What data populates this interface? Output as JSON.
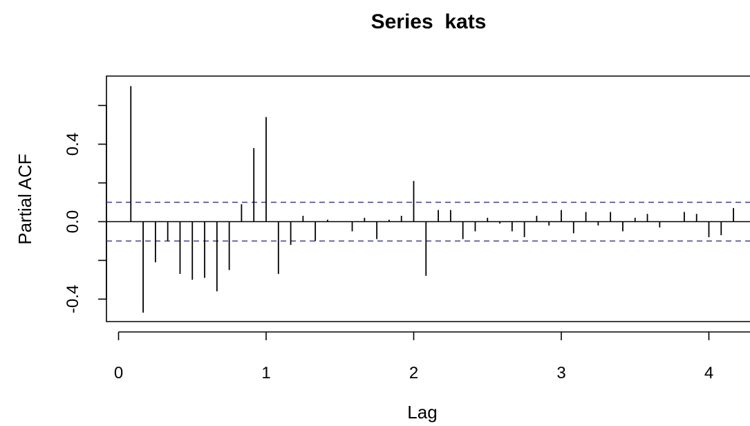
{
  "chart_data": {
    "type": "bar",
    "subtype": "partial-autocorrelation",
    "title": "Series  kats",
    "xlabel": "Lag",
    "ylabel": "Partial ACF",
    "xlim": [
      0,
      4.2
    ],
    "ylim": [
      -0.5,
      0.7
    ],
    "x_ticks": [
      0,
      1,
      2,
      3,
      4
    ],
    "x_tick_labels": [
      "0",
      "1",
      "2",
      "3",
      "4"
    ],
    "y_ticks": [
      -0.4,
      0.0,
      0.4
    ],
    "y_tick_labels": [
      "-0.4",
      "0.0",
      "0.4"
    ],
    "grid": false,
    "legend": "none",
    "zero_line": true,
    "confidence_band": {
      "upper": 0.1,
      "lower": -0.1,
      "line_style": "dashed",
      "color": "#3c3c8c"
    },
    "colors": {
      "bars": "#000000",
      "frame": "#000000",
      "confidence": "#3c3c8c"
    },
    "lags": [
      0.0833,
      0.1667,
      0.25,
      0.3333,
      0.4167,
      0.5,
      0.5833,
      0.6667,
      0.75,
      0.8333,
      0.9167,
      1.0,
      1.0833,
      1.1667,
      1.25,
      1.3333,
      1.4167,
      1.5,
      1.5833,
      1.6667,
      1.75,
      1.8333,
      1.9167,
      2.0,
      2.0833,
      2.1667,
      2.25,
      2.3333,
      2.4167,
      2.5,
      2.5833,
      2.6667,
      2.75,
      2.8333,
      2.9167,
      3.0,
      3.0833,
      3.1667,
      3.25,
      3.3333,
      3.4167,
      3.5,
      3.5833,
      3.6667,
      3.75,
      3.8333,
      3.9167,
      4.0,
      4.0833,
      4.1667
    ],
    "values": [
      0.7,
      -0.47,
      -0.21,
      -0.1,
      -0.27,
      -0.3,
      -0.29,
      -0.36,
      -0.25,
      0.09,
      0.38,
      0.54,
      -0.27,
      -0.12,
      0.03,
      -0.1,
      0.01,
      0.0,
      -0.05,
      0.02,
      -0.09,
      0.01,
      0.03,
      0.21,
      -0.28,
      0.06,
      0.06,
      -0.09,
      -0.05,
      0.02,
      -0.01,
      -0.05,
      -0.08,
      0.03,
      -0.02,
      0.06,
      -0.06,
      0.05,
      -0.02,
      0.05,
      -0.05,
      0.02,
      0.04,
      -0.03,
      0.0,
      0.05,
      0.04,
      -0.08,
      -0.07,
      0.07
    ]
  }
}
